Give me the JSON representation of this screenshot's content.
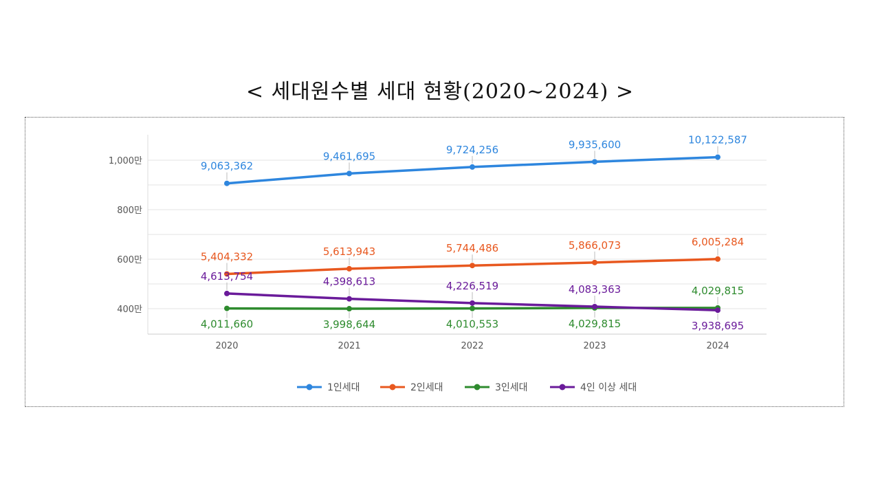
{
  "title": "< 세대원수별 세대 현황(2020~2024) >",
  "chart_data": {
    "type": "line",
    "title": "< 세대원수별 세대 현황(2020~2024) >",
    "x": [
      "2020",
      "2021",
      "2022",
      "2023",
      "2024"
    ],
    "y_ticks": [
      {
        "value": 4000000,
        "label": "400만"
      },
      {
        "value": 6000000,
        "label": "600만"
      },
      {
        "value": 8000000,
        "label": "800만"
      },
      {
        "value": 10000000,
        "label": "1,000만"
      }
    ],
    "ylim": [
      3500000,
      10500000
    ],
    "grid": true,
    "legend_position": "bottom",
    "series": [
      {
        "name": "1인세대",
        "color": "#2E86DE",
        "values": [
          9063362,
          9461695,
          9724256,
          9935600,
          10122587
        ],
        "labels": [
          "9,063,362",
          "9,461,695",
          "9,724,256",
          "9,935,600",
          "10,122,587"
        ],
        "label_pos": [
          "above",
          "above",
          "above",
          "above",
          "above"
        ]
      },
      {
        "name": "2인세대",
        "color": "#E8581F",
        "values": [
          5404332,
          5613943,
          5744486,
          5866073,
          6005284
        ],
        "labels": [
          "5,404,332",
          "5,613,943",
          "5,744,486",
          "5,866,073",
          "6,005,284"
        ],
        "label_pos": [
          "above",
          "above",
          "above",
          "above",
          "above"
        ]
      },
      {
        "name": "3인세대",
        "color": "#2E8B2E",
        "values": [
          4011660,
          3998644,
          4010553,
          4029815,
          4029815
        ],
        "labels": [
          "4,011,660",
          "3,998,644",
          "4,010,553",
          "4,029,815",
          "4,029,815"
        ],
        "label_pos": [
          "below",
          "below",
          "below",
          "below",
          "above"
        ]
      },
      {
        "name": "4인 이상 세대",
        "color": "#6A1B9A",
        "values": [
          4613754,
          4398613,
          4226519,
          4083363,
          3938695
        ],
        "labels": [
          "4,613,754",
          "4,398,613",
          "4,226,519",
          "4,083,363",
          "3,938,695"
        ],
        "label_pos": [
          "above",
          "above",
          "above",
          "above",
          "below"
        ]
      }
    ]
  }
}
